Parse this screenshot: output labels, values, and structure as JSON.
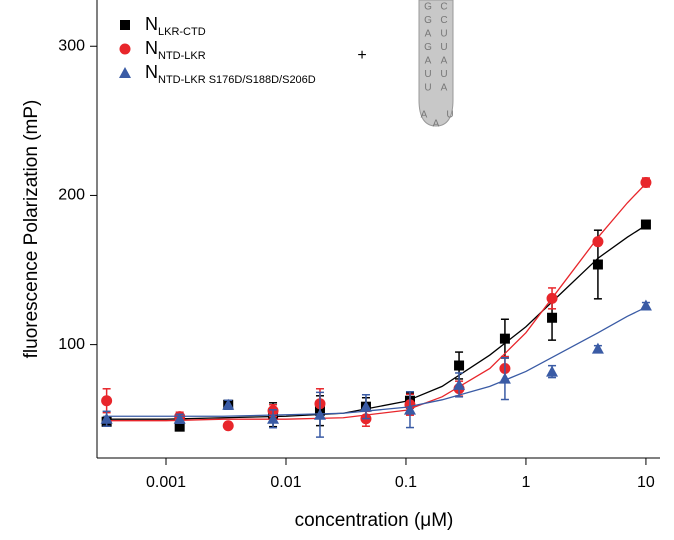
{
  "chart_data": {
    "type": "scatter",
    "xlabel": "concentration (μM)",
    "ylabel": "fluorescence Polarization (mP)",
    "xscale": "log",
    "xlim": [
      0.000266,
      13.1
    ],
    "ylim": [
      24,
      331
    ],
    "xticks": [
      0.001,
      0.01,
      0.1,
      1,
      10
    ],
    "yticks": [
      100,
      200,
      300
    ],
    "x": [
      0.00032,
      0.0013,
      0.0033,
      0.0078,
      0.0192,
      0.0464,
      0.108,
      0.277,
      0.668,
      1.65,
      3.98,
      10
    ],
    "fit_x": [
      0.0003,
      0.001,
      0.003,
      0.01,
      0.03,
      0.1,
      0.2,
      0.5,
      1,
      2,
      4,
      7,
      10
    ],
    "series": [
      {
        "name": "N",
        "subscript": "LKR-CTD",
        "color": "#000000",
        "marker": "square",
        "values": [
          48.3,
          45,
          59.7,
          53,
          55.7,
          58.4,
          62.4,
          86,
          104,
          118,
          153.7,
          180.5
        ],
        "errors": [
          3,
          2,
          3,
          8,
          10,
          6,
          5,
          9,
          13,
          15,
          23,
          2
        ],
        "fit_values": [
          50,
          50,
          51,
          52,
          54,
          62,
          72,
          93,
          112,
          135,
          158,
          172,
          180
        ]
      },
      {
        "name": "N",
        "subscript": "NTD-LKR",
        "color": "#e8262b",
        "marker": "circle",
        "values": [
          62.4,
          51.7,
          45.6,
          55.7,
          60.4,
          50.3,
          59.7,
          70.5,
          84,
          131,
          169,
          208.7
        ],
        "errors": [
          8,
          3,
          2,
          4,
          10,
          5,
          7,
          5,
          8,
          7,
          2,
          3
        ],
        "fit_values": [
          49,
          49,
          50,
          50,
          51,
          56,
          65,
          84,
          108,
          140,
          172,
          195,
          208
        ]
      },
      {
        "name": "N",
        "subscript": "NTD-LKR S176D/S188D/S206D",
        "color": "#3a5ba5",
        "marker": "triangle",
        "values": [
          50.3,
          50.3,
          59.7,
          50.3,
          53,
          58.4,
          56.4,
          73,
          77.2,
          81.9,
          97.3,
          126.2
        ],
        "errors": [
          5,
          3,
          3,
          6,
          15,
          8,
          12,
          8,
          14,
          4,
          2,
          2
        ],
        "fit_values": [
          52,
          52,
          52,
          53,
          54,
          58,
          63,
          72,
          82,
          95,
          108,
          119,
          125
        ]
      }
    ],
    "annotations": [
      "+"
    ]
  },
  "diagram": {
    "left": [
      "G",
      "G",
      "A",
      "G",
      "A",
      "U",
      "U"
    ],
    "loop": [
      "A",
      "A",
      "U"
    ],
    "right": [
      "C",
      "C",
      "U",
      "U",
      "A",
      "U",
      "A"
    ]
  }
}
